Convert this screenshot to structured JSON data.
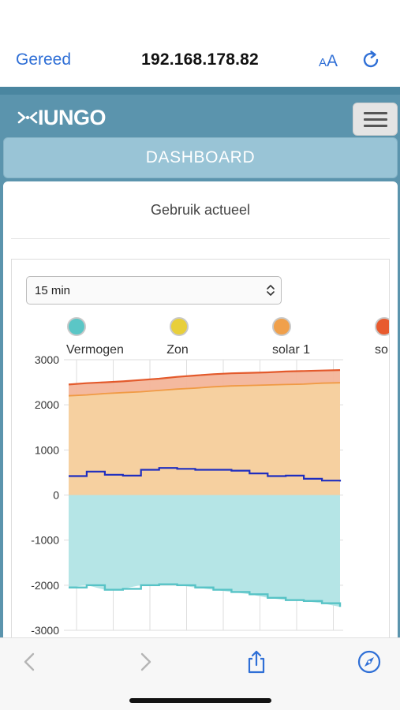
{
  "browser": {
    "done_label": "Gereed",
    "address": "192.168.178.82",
    "text_size_small": "A",
    "text_size_large": "A",
    "reload_icon": "reload-icon",
    "toolbar_icons": [
      "back-icon",
      "forward-icon",
      "share-icon",
      "compass-icon"
    ]
  },
  "app": {
    "logo_text": "IUNGO",
    "menu_icon": "hamburger-menu-icon",
    "nav_tab": "DASHBOARD",
    "card_title": "Gebruik actueel",
    "period_select": {
      "value": "15 min",
      "options": [
        "15 min"
      ]
    }
  },
  "colors": {
    "navbar": "#5b94ad",
    "tab": "#99c4d6",
    "accent_link": "#2f6fd6",
    "vermogen": "#5bc6c6",
    "zon": "#e8cf3a",
    "solar1": "#f0a04b",
    "solar2": "#e85a2e"
  },
  "chart_data": {
    "type": "area",
    "title": "",
    "xlabel": "",
    "ylabel": "",
    "ylim": [
      -3000,
      3000
    ],
    "yticks": [
      3000,
      2000,
      1000,
      0,
      -1000,
      -2000,
      -3000
    ],
    "grid": true,
    "legend_placement": "top",
    "legend": [
      {
        "label": "Vermogen",
        "color": "#5bc6c6"
      },
      {
        "label": "Zon",
        "color": "#e8cf3a"
      },
      {
        "label": "solar 1",
        "color": "#f0a04b"
      },
      {
        "label": "so",
        "color": "#e85a2e"
      }
    ],
    "x": [
      0,
      1,
      2,
      3,
      4,
      5,
      6,
      7,
      8,
      9,
      10,
      11,
      12,
      13,
      14,
      15
    ],
    "series": [
      {
        "name": "Vermogen",
        "values": [
          -2050,
          -2000,
          -2100,
          -2080,
          -2000,
          -1980,
          -2000,
          -2050,
          -2100,
          -2150,
          -2200,
          -2280,
          -2330,
          -2350,
          -2400,
          -2480
        ]
      },
      {
        "name": "solar 1",
        "values": [
          2200,
          2220,
          2250,
          2270,
          2290,
          2320,
          2350,
          2370,
          2400,
          2420,
          2430,
          2440,
          2450,
          2460,
          2480,
          2490
        ]
      },
      {
        "name": "so",
        "values": [
          2450,
          2480,
          2500,
          2520,
          2550,
          2580,
          2620,
          2650,
          2680,
          2700,
          2710,
          2720,
          2740,
          2750,
          2760,
          2770
        ]
      },
      {
        "name": "",
        "values": [
          420,
          520,
          450,
          430,
          560,
          600,
          580,
          560,
          560,
          540,
          480,
          420,
          430,
          360,
          320,
          300
        ]
      }
    ]
  }
}
